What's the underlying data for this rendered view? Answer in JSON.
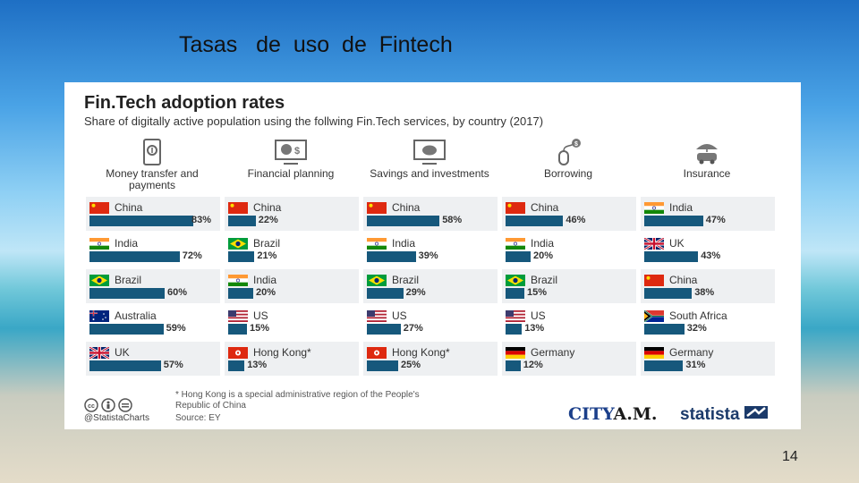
{
  "slide": {
    "title": "Tasas   de  uso  de  Fintech",
    "page_number": "14"
  },
  "chart_data": {
    "type": "bar",
    "title": "Fin.Tech adoption rates",
    "subtitle": "Share of digitally active population using the follwing Fin.Tech services, by country (2017)",
    "xlim": [
      0,
      100
    ],
    "unit": "%",
    "panels": [
      {
        "name": "Money transfer and payments",
        "icon": "tablet-dollar-icon",
        "categories": [
          "China",
          "India",
          "Brazil",
          "Australia",
          "UK"
        ],
        "values": [
          83,
          72,
          60,
          59,
          57
        ],
        "labels": [
          "83%",
          "72%",
          "60%",
          "59%",
          "57%"
        ],
        "flags": [
          "china",
          "india",
          "brazil",
          "australia",
          "uk"
        ]
      },
      {
        "name": "Financial planning",
        "icon": "monitor-piechart-icon",
        "categories": [
          "China",
          "Brazil",
          "India",
          "US",
          "Hong Kong*"
        ],
        "values": [
          22,
          21,
          20,
          15,
          13
        ],
        "labels": [
          "22%",
          "21%",
          "20%",
          "15%",
          "13%"
        ],
        "flags": [
          "china",
          "brazil",
          "india",
          "us",
          "hongkong"
        ]
      },
      {
        "name": "Savings and investments",
        "icon": "monitor-piggybank-icon",
        "categories": [
          "China",
          "India",
          "Brazil",
          "US",
          "Hong Kong*"
        ],
        "values": [
          58,
          39,
          29,
          27,
          25
        ],
        "labels": [
          "58%",
          "39%",
          "29%",
          "27%",
          "25%"
        ],
        "flags": [
          "china",
          "india",
          "brazil",
          "us",
          "hongkong"
        ]
      },
      {
        "name": "Borrowing",
        "icon": "mouse-coin-icon",
        "categories": [
          "China",
          "India",
          "Brazil",
          "US",
          "Germany"
        ],
        "values": [
          46,
          20,
          15,
          13,
          12
        ],
        "labels": [
          "46%",
          "20%",
          "15%",
          "13%",
          "12%"
        ],
        "flags": [
          "china",
          "india",
          "brazil",
          "us",
          "germany"
        ]
      },
      {
        "name": "Insurance",
        "icon": "umbrella-car-icon",
        "categories": [
          "India",
          "UK",
          "China",
          "South Africa",
          "Germany"
        ],
        "values": [
          47,
          43,
          38,
          32,
          31
        ],
        "labels": [
          "47%",
          "43%",
          "38%",
          "32%",
          "31%"
        ],
        "flags": [
          "india",
          "uk",
          "china",
          "southafrica",
          "germany"
        ]
      }
    ],
    "footnote": "* Hong Kong is a special administrative region of the People's Republic of China",
    "source": "Source: EY",
    "handle": "@StatistaCharts",
    "logos": [
      "CITYA.M.",
      "statista"
    ]
  },
  "colors": {
    "bar": "#16587c",
    "panel_bg": "#ffffff",
    "row_shade": "#eef0f2"
  }
}
